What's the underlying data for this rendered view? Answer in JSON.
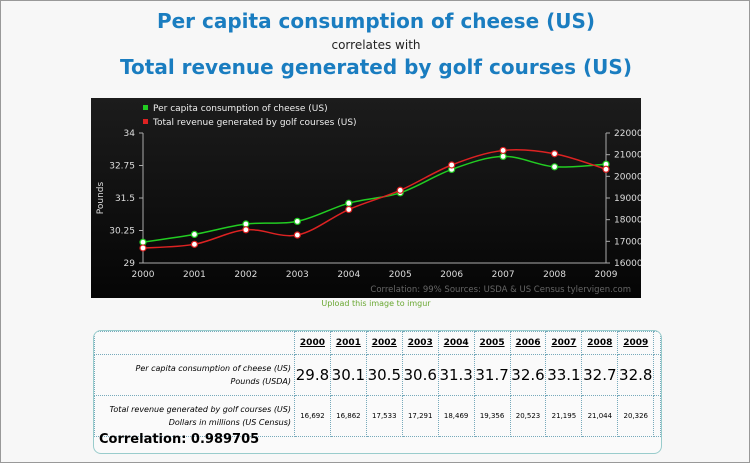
{
  "header": {
    "title1": "Per capita consumption of cheese (US)",
    "connector": "correlates with",
    "title2": "Total revenue generated by golf courses (US)"
  },
  "upload_link": "Upload this image to imgur",
  "chart_data": {
    "type": "line",
    "x": [
      2000,
      2001,
      2002,
      2003,
      2004,
      2005,
      2006,
      2007,
      2008,
      2009
    ],
    "series": [
      {
        "name": "Per capita consumption of cheese (US)",
        "axis": "left",
        "color": "#22cc22",
        "values": [
          29.8,
          30.1,
          30.5,
          30.6,
          31.3,
          31.7,
          32.6,
          33.1,
          32.7,
          32.8
        ]
      },
      {
        "name": "Total revenue generated by golf courses (US)",
        "axis": "right",
        "color": "#dd2222",
        "values": [
          16692,
          16862,
          17533,
          17291,
          18469,
          19356,
          20523,
          21195,
          21044,
          20326
        ]
      }
    ],
    "ylabel_left": "Pounds",
    "ylabel_right": "Dollars in millions",
    "ylim_left": [
      29,
      34
    ],
    "yticks_left": [
      "29",
      "30.25",
      "31.5",
      "32.75",
      "34"
    ],
    "ylim_right": [
      16000,
      22000
    ],
    "yticks_right": [
      "16000",
      "17000",
      "18000",
      "19000",
      "20000",
      "21000",
      "22000"
    ],
    "xticks": [
      "2000",
      "2001",
      "2002",
      "2003",
      "2004",
      "2005",
      "2006",
      "2007",
      "2008",
      "2009"
    ],
    "legend": "top-left",
    "footer": "Correlation: 99%    Sources: USDA & US Census    tylervigen.com"
  },
  "table": {
    "years": [
      "2000",
      "2001",
      "2002",
      "2003",
      "2004",
      "2005",
      "2006",
      "2007",
      "2008",
      "2009"
    ],
    "rows": [
      {
        "label": "Per capita consumption of cheese (US)",
        "unit": "Pounds (USDA)",
        "values": [
          "29.8",
          "30.1",
          "30.5",
          "30.6",
          "31.3",
          "31.7",
          "32.6",
          "33.1",
          "32.7",
          "32.8"
        ]
      },
      {
        "label": "Total revenue generated by golf courses (US)",
        "unit": "Dollars in millions (US Census)",
        "values": [
          "16,692",
          "16,862",
          "17,533",
          "17,291",
          "18,469",
          "19,356",
          "20,523",
          "21,195",
          "21,044",
          "20,326"
        ]
      }
    ],
    "correlation": "Correlation: 0.989705"
  }
}
